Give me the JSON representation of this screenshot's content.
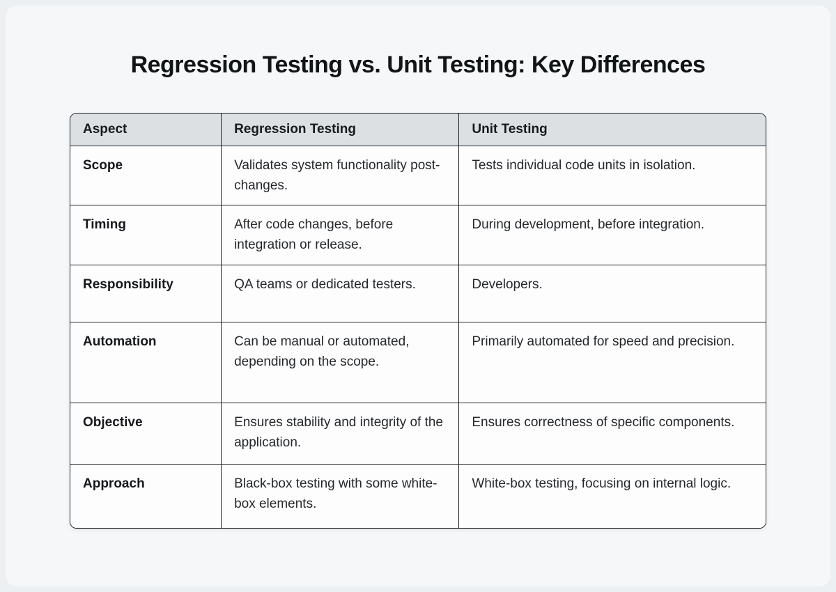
{
  "page": {
    "title": "Regression Testing vs. Unit Testing: Key Differences"
  },
  "colors": {
    "page_background": "#edf0f2",
    "card_background": "#f5f7f8",
    "header_background": "#dde0e3",
    "table_border": "#212428",
    "cell_background": "#fdfdfe",
    "title_text": "#121517",
    "body_text": "#25282b"
  },
  "table": {
    "columns": [
      {
        "label": "Aspect"
      },
      {
        "label": "Regression Testing"
      },
      {
        "label": "Unit Testing"
      }
    ],
    "rows": [
      {
        "aspect": "Scope",
        "regression": "Validates system functionality post-changes.",
        "unit": "Tests individual code units in isolation."
      },
      {
        "aspect": "Timing",
        "regression": "After code changes, before integration or release.",
        "unit": "During development, before integration."
      },
      {
        "aspect": "Responsibility",
        "regression": "QA teams or dedicated testers.",
        "unit": "Developers."
      },
      {
        "aspect": "Automation",
        "regression": "Can be manual or automated, depending on the scope.",
        "unit": "Primarily automated for speed and precision."
      },
      {
        "aspect": "Objective",
        "regression": "Ensures stability and integrity of the application.",
        "unit": "Ensures correctness of specific components."
      },
      {
        "aspect": "Approach",
        "regression": "Black-box testing with some white-box elements.",
        "unit": "White-box testing, focusing on internal logic."
      }
    ]
  }
}
